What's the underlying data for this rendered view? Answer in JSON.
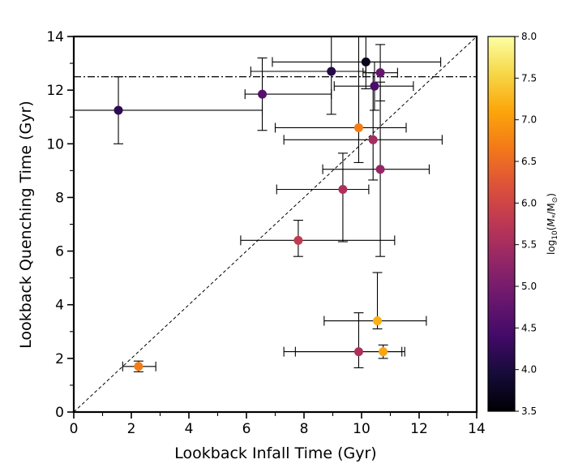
{
  "chart_data": {
    "type": "scatter",
    "xlabel": "Lookback Infall Time (Gyr)",
    "ylabel": "Lookback Quenching Time (Gyr)",
    "xlim": [
      0,
      14
    ],
    "ylim": [
      0,
      14
    ],
    "xticks": [
      "0",
      "2",
      "4",
      "6",
      "8",
      "10",
      "12",
      "14"
    ],
    "yticks": [
      "0",
      "2",
      "4",
      "6",
      "8",
      "10",
      "12",
      "14"
    ],
    "reference_lines": [
      {
        "kind": "one-to-one",
        "style": "dashed"
      },
      {
        "kind": "horizontal",
        "y": 12.5,
        "style": "dash-dot"
      }
    ],
    "colorbar": {
      "label": "log10(M*/M⊙)",
      "label_parts": {
        "prefix": "log",
        "sub1": "10",
        "open": "(",
        "m": "M",
        "star": "*",
        "slash": "/",
        "msun": "M",
        "sun": "⊙",
        "close": ")"
      },
      "range": [
        3.5,
        8.0
      ],
      "ticks": [
        "3.5",
        "4.0",
        "4.5",
        "5.0",
        "5.5",
        "6.0",
        "6.5",
        "7.0",
        "7.5",
        "8.0"
      ]
    },
    "points": [
      {
        "x": 1.55,
        "y": 11.25,
        "xerr": [
          1.55,
          5.0
        ],
        "yerr": [
          1.25,
          1.25
        ],
        "logM": 4.2
      },
      {
        "x": 6.55,
        "y": 11.85,
        "xerr": [
          0.6,
          2.4
        ],
        "yerr": [
          1.35,
          1.35
        ],
        "logM": 4.6
      },
      {
        "x": 8.95,
        "y": 12.7,
        "xerr": [
          2.8,
          1.2
        ],
        "yerr": [
          1.6,
          1.6
        ],
        "logM": 4.1
      },
      {
        "x": 10.15,
        "y": 13.05,
        "xerr": [
          3.25,
          2.6
        ],
        "yerr": [
          1.0,
          1.0
        ],
        "logM": 3.7
      },
      {
        "x": 10.65,
        "y": 12.65,
        "xerr": [
          0.6,
          0.6
        ],
        "yerr": [
          1.05,
          1.05
        ],
        "logM": 4.8
      },
      {
        "x": 10.45,
        "y": 12.15,
        "xerr": [
          1.4,
          1.35
        ],
        "yerr": [
          0.9,
          0.9
        ],
        "logM": 4.5
      },
      {
        "x": 9.9,
        "y": 10.6,
        "xerr": [
          2.9,
          1.65
        ],
        "yerr": [
          1.3,
          3.5
        ],
        "logM": 6.7
      },
      {
        "x": 10.4,
        "y": 10.15,
        "xerr": [
          3.1,
          2.4
        ],
        "yerr": [
          1.5,
          2.5
        ],
        "logM": 5.5
      },
      {
        "x": 10.65,
        "y": 9.05,
        "xerr": [
          2.0,
          1.7
        ],
        "yerr": [
          3.25,
          3.25
        ],
        "logM": 5.3
      },
      {
        "x": 9.35,
        "y": 8.3,
        "xerr": [
          2.3,
          0.9
        ],
        "yerr": [
          1.95,
          1.35
        ],
        "logM": 5.6
      },
      {
        "x": 7.8,
        "y": 6.4,
        "xerr": [
          2.0,
          3.35
        ],
        "yerr": [
          0.6,
          0.75
        ],
        "logM": 5.8
      },
      {
        "x": 10.55,
        "y": 3.4,
        "xerr": [
          1.85,
          1.7
        ],
        "yerr": [
          0.3,
          1.8
        ],
        "logM": 7.2
      },
      {
        "x": 9.9,
        "y": 2.25,
        "xerr": [
          2.6,
          1.5
        ],
        "yerr": [
          0.6,
          1.45
        ],
        "logM": 5.6
      },
      {
        "x": 10.75,
        "y": 2.25,
        "xerr": [
          3.05,
          0.75
        ],
        "yerr": [
          0.25,
          0.25
        ],
        "logM": 7.1
      },
      {
        "x": 2.25,
        "y": 1.7,
        "xerr": [
          0.55,
          0.6
        ],
        "yerr": [
          0.2,
          0.2
        ],
        "logM": 6.7
      }
    ]
  }
}
